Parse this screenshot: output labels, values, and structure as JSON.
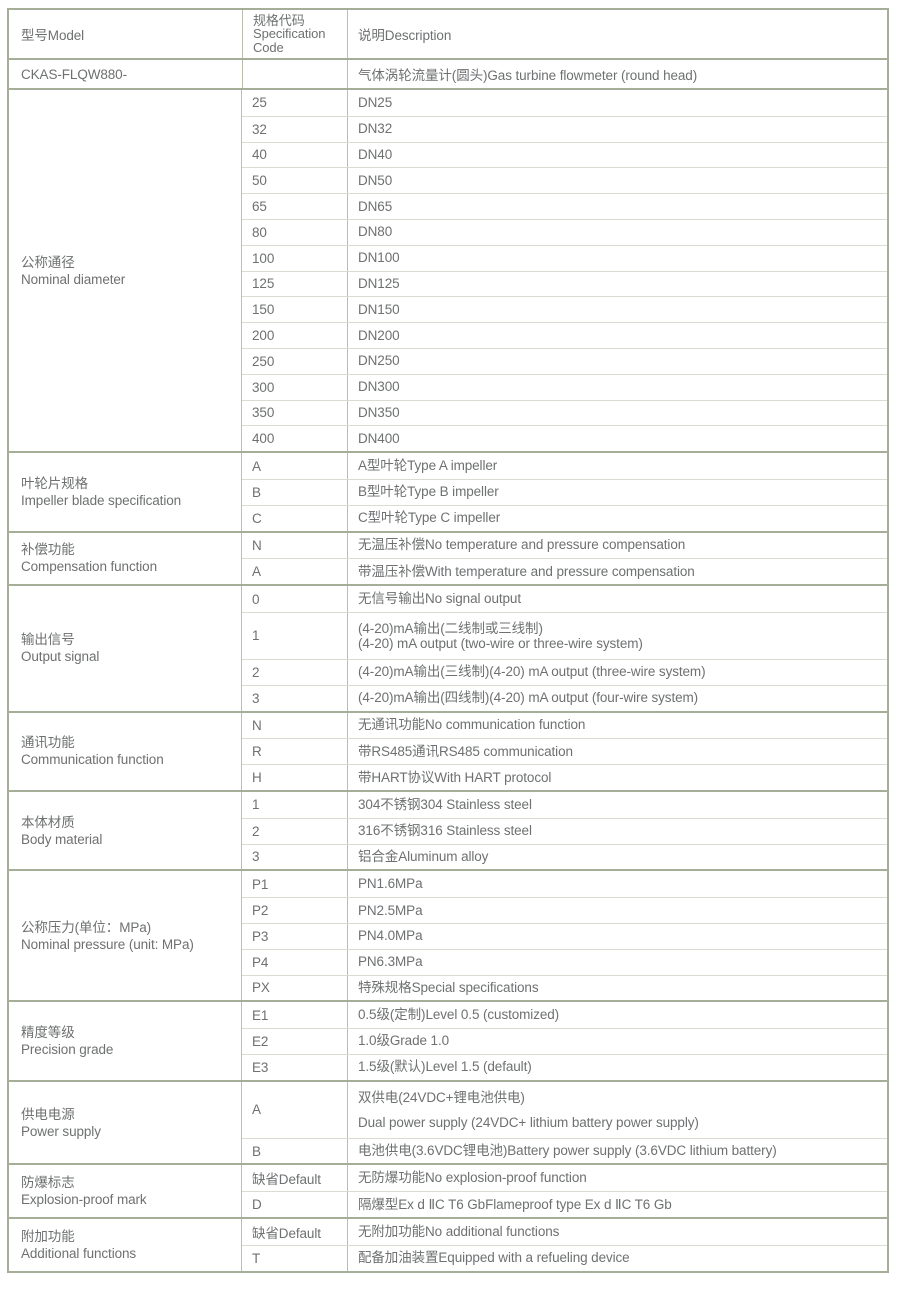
{
  "header": {
    "model": "型号Model",
    "spec_code_lines": [
      "规格代码",
      "Specification",
      "Code"
    ],
    "description": "说明Description"
  },
  "base_row": {
    "model": "CKAS-FLQW880-",
    "code": "",
    "desc": "气体涡轮流量计(圆头)Gas turbine flowmeter (round head)"
  },
  "sections": [
    {
      "cn": "公称通径",
      "en": "Nominal diameter",
      "rows": [
        {
          "code": "25",
          "desc": [
            "DN25"
          ]
        },
        {
          "code": "32",
          "desc": [
            "DN32"
          ]
        },
        {
          "code": "40",
          "desc": [
            "DN40"
          ]
        },
        {
          "code": "50",
          "desc": [
            "DN50"
          ]
        },
        {
          "code": "65",
          "desc": [
            "DN65"
          ]
        },
        {
          "code": "80",
          "desc": [
            "DN80"
          ]
        },
        {
          "code": "100",
          "desc": [
            "DN100"
          ]
        },
        {
          "code": "125",
          "desc": [
            "DN125"
          ]
        },
        {
          "code": "150",
          "desc": [
            "DN150"
          ]
        },
        {
          "code": "200",
          "desc": [
            "DN200"
          ]
        },
        {
          "code": "250",
          "desc": [
            "DN250"
          ]
        },
        {
          "code": "300",
          "desc": [
            "DN300"
          ]
        },
        {
          "code": "350",
          "desc": [
            "DN350"
          ]
        },
        {
          "code": "400",
          "desc": [
            "DN400"
          ]
        }
      ]
    },
    {
      "cn": "叶轮片规格",
      "en": "Impeller blade specification",
      "rows": [
        {
          "code": "A",
          "desc": [
            "A型叶轮Type A impeller"
          ]
        },
        {
          "code": "B",
          "desc": [
            "B型叶轮Type B impeller"
          ]
        },
        {
          "code": "C",
          "desc": [
            "C型叶轮Type C impeller"
          ]
        }
      ]
    },
    {
      "cn": "补偿功能",
      "en": "Compensation function",
      "rows": [
        {
          "code": "N",
          "desc": [
            "无温压补偿No temperature and pressure compensation"
          ]
        },
        {
          "code": "A",
          "desc": [
            "带温压补偿With temperature and pressure compensation"
          ]
        }
      ]
    },
    {
      "cn": "输出信号",
      "en": "Output signal",
      "rows": [
        {
          "code": "0",
          "desc": [
            "无信号输出No signal output"
          ]
        },
        {
          "code": "1",
          "desc": [
            "(4-20)mA输出(二线制或三线制)",
            "(4-20) mA output (two-wire or three-wire system)"
          ]
        },
        {
          "code": "2",
          "desc": [
            "(4-20)mA输出(三线制)(4-20) mA output (three-wire system)"
          ]
        },
        {
          "code": "3",
          "desc": [
            "(4-20)mA输出(四线制)(4-20) mA output (four-wire system)"
          ]
        }
      ]
    },
    {
      "cn": "通讯功能",
      "en": "Communication function",
      "rows": [
        {
          "code": "N",
          "desc": [
            "无通讯功能No communication function"
          ]
        },
        {
          "code": "R",
          "desc": [
            "带RS485通讯RS485 communication"
          ]
        },
        {
          "code": "H",
          "desc": [
            "带HART协议With HART protocol"
          ]
        }
      ]
    },
    {
      "cn": "本体材质",
      "en": "Body material",
      "rows": [
        {
          "code": "1",
          "desc": [
            "304不锈钢304 Stainless steel"
          ]
        },
        {
          "code": "2",
          "desc": [
            "316不锈钢316 Stainless steel"
          ]
        },
        {
          "code": "3",
          "desc": [
            "铝合金Aluminum alloy"
          ]
        }
      ]
    },
    {
      "cn": "公称压力(单位：MPa)",
      "en": "Nominal pressure (unit: MPa)",
      "rows": [
        {
          "code": "P1",
          "desc": [
            "PN1.6MPa"
          ]
        },
        {
          "code": "P2",
          "desc": [
            "PN2.5MPa"
          ]
        },
        {
          "code": "P3",
          "desc": [
            "PN4.0MPa"
          ]
        },
        {
          "code": "P4",
          "desc": [
            "PN6.3MPa"
          ]
        },
        {
          "code": "PX",
          "desc": [
            "特殊规格Special specifications"
          ]
        }
      ]
    },
    {
      "cn": "精度等级",
      "en": "Precision grade",
      "rows": [
        {
          "code": "E1",
          "desc": [
            "0.5级(定制)Level 0.5 (customized)"
          ]
        },
        {
          "code": "E2",
          "desc": [
            "1.0级Grade 1.0"
          ]
        },
        {
          "code": "E3",
          "desc": [
            "1.5级(默认)Level 1.5 (default)"
          ]
        }
      ]
    },
    {
      "cn": "供电电源",
      "en": "Power supply",
      "rows": [
        {
          "code": "A",
          "spaced": true,
          "desc": [
            "双供电(24VDC+锂电池供电)",
            "Dual power supply (24VDC+ lithium battery power supply)"
          ]
        },
        {
          "code": "B",
          "desc": [
            "电池供电(3.6VDC锂电池)Battery power supply (3.6VDC lithium battery)"
          ]
        }
      ]
    },
    {
      "cn": "防爆标志",
      "en": "Explosion-proof mark",
      "rows": [
        {
          "code": "缺省Default",
          "desc": [
            "无防爆功能No explosion-proof function"
          ]
        },
        {
          "code": "D",
          "desc": [
            "隔爆型Ex d ⅡC T6 GbFlameproof type Ex d ⅡC T6 Gb"
          ]
        }
      ]
    },
    {
      "cn": "附加功能",
      "en": "Additional functions",
      "rows": [
        {
          "code": "缺省Default",
          "desc": [
            "无附加功能No additional functions"
          ]
        },
        {
          "code": "T",
          "desc": [
            "配备加油装置Equipped with a refueling device"
          ]
        }
      ]
    }
  ],
  "colors": {
    "section_border": "#a5ae97",
    "row_border": "#d9ddd0",
    "column_border": "#b9c0ab",
    "text": "#6e7071"
  }
}
